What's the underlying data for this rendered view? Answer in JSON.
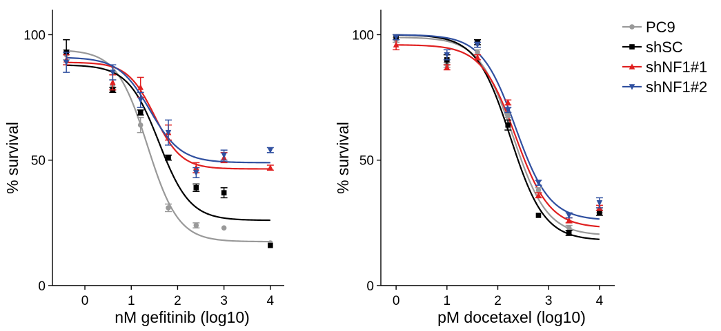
{
  "chart_data": [
    {
      "type": "line",
      "xlabel": "nM gefitinib (log10)",
      "ylabel": "% survival",
      "xlim": [
        -0.7,
        4.3
      ],
      "ylim": [
        0,
        110
      ],
      "xticks": [
        0,
        1,
        2,
        3,
        4
      ],
      "yticks": [
        0,
        50,
        100
      ],
      "x": [
        -0.4,
        0.6,
        1.2,
        1.8,
        2.4,
        3.0,
        4.0
      ],
      "series": [
        {
          "name": "PC9",
          "color": "#999999",
          "marker": "circle",
          "values": [
            92,
            80,
            64,
            31,
            24,
            23,
            17
          ],
          "errors": [
            2,
            2,
            3,
            1.5,
            1,
            0,
            0
          ],
          "fit": {
            "top": 94,
            "bottom": 17.5,
            "logec50": 1.35,
            "hill": 1.3
          }
        },
        {
          "name": "shSC",
          "color": "#000000",
          "marker": "square",
          "values": [
            93,
            78,
            69,
            51,
            39,
            37,
            16
          ],
          "errors": [
            5,
            1,
            1,
            1,
            1.5,
            2,
            0
          ],
          "fit": {
            "top": 88,
            "bottom": 26,
            "logec50": 1.6,
            "hill": 1.3
          }
        },
        {
          "name": "shNF1#1",
          "color": "#e02020",
          "marker": "triangle-up",
          "values": [
            90,
            81,
            79,
            61,
            47,
            51,
            47
          ],
          "errors": [
            2,
            3,
            4,
            3,
            2,
            2,
            1
          ],
          "fit": {
            "top": 89,
            "bottom": 46.5,
            "logec50": 1.5,
            "hill": 1.5
          }
        },
        {
          "name": "shNF1#2",
          "color": "#3050a0",
          "marker": "triangle-down",
          "values": [
            89,
            85,
            74,
            61,
            45,
            52,
            54
          ],
          "errors": [
            4,
            3,
            3,
            5,
            2,
            2,
            1
          ],
          "fit": {
            "top": 91,
            "bottom": 49,
            "logec50": 1.4,
            "hill": 1.3
          }
        }
      ]
    },
    {
      "type": "line",
      "xlabel": "pM docetaxel (log10)",
      "ylabel": "% survival",
      "xlim": [
        -0.3,
        4.3
      ],
      "ylim": [
        0,
        110
      ],
      "xticks": [
        0,
        1,
        2,
        3,
        4
      ],
      "yticks": [
        0,
        50,
        100
      ],
      "x": [
        0,
        1,
        1.6,
        2.2,
        2.8,
        3.4,
        4.0
      ],
      "series": [
        {
          "name": "PC9",
          "color": "#999999",
          "marker": "circle",
          "values": [
            98,
            88,
            93,
            68,
            38,
            23,
            30
          ],
          "errors": [
            1,
            1,
            1,
            1,
            1,
            1,
            1
          ],
          "fit": {
            "top": 99,
            "bottom": 20,
            "logec50": 2.3,
            "hill": 1.3
          }
        },
        {
          "name": "shSC",
          "color": "#000000",
          "marker": "square",
          "values": [
            99,
            90,
            97,
            64,
            28,
            21,
            29
          ],
          "errors": [
            1,
            2,
            1,
            2,
            0,
            1,
            1
          ],
          "fit": {
            "top": 100,
            "bottom": 18,
            "logec50": 2.25,
            "hill": 1.3
          }
        },
        {
          "name": "shNF1#1",
          "color": "#e02020",
          "marker": "triangle-up",
          "values": [
            96,
            87,
            91,
            73,
            36,
            26,
            31
          ],
          "errors": [
            2,
            1,
            1,
            1,
            1,
            1,
            1
          ],
          "fit": {
            "top": 96,
            "bottom": 23,
            "logec50": 2.35,
            "hill": 1.3
          }
        },
        {
          "name": "shNF1#2",
          "color": "#3050a0",
          "marker": "triangle-down",
          "values": [
            99,
            92,
            96,
            70,
            41,
            28,
            33
          ],
          "errors": [
            1,
            2,
            1,
            1,
            1,
            1,
            2
          ],
          "fit": {
            "top": 100,
            "bottom": 26,
            "logec50": 2.35,
            "hill": 1.3
          }
        }
      ]
    }
  ],
  "legend": {
    "placement": "right",
    "items": [
      "PC9",
      "shSC",
      "shNF1#1",
      "shNF1#2"
    ]
  }
}
